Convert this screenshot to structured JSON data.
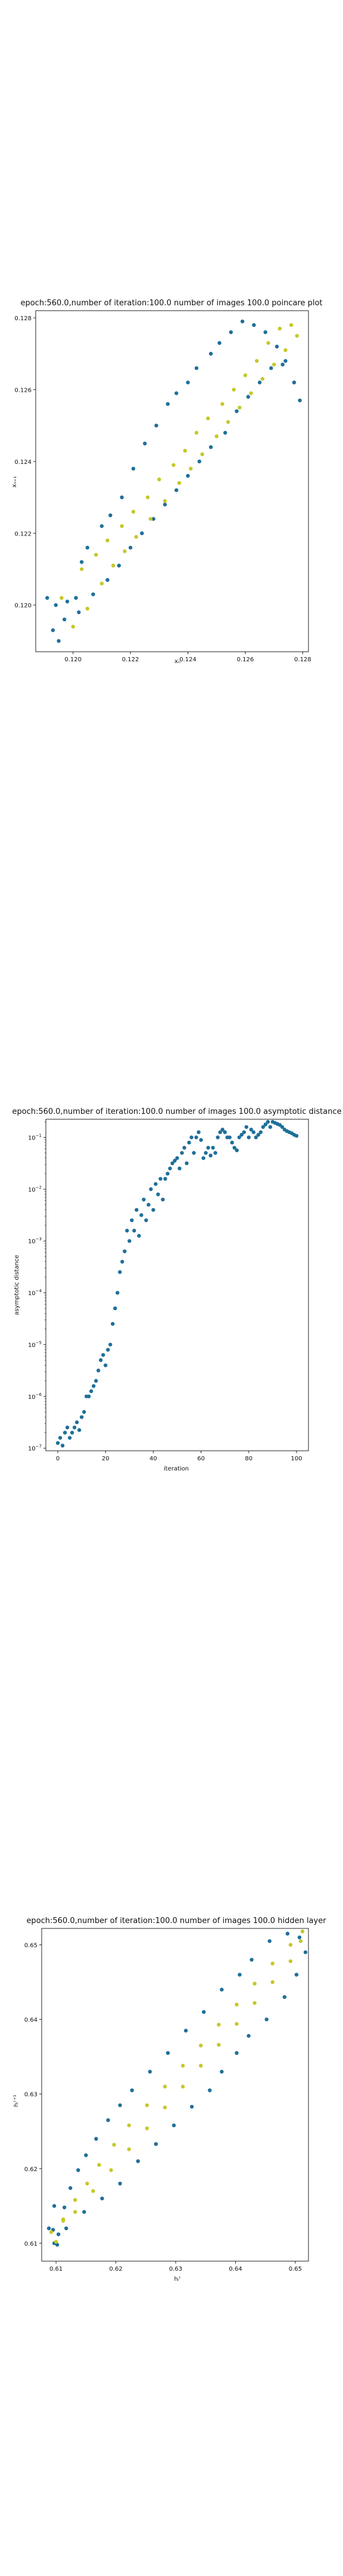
{
  "chart_data": [
    {
      "type": "scatter",
      "title": "epoch:560.0,number of iteration:100.0 number of images 100.0 poincare plot",
      "xlabel": "xₙ",
      "ylabel": "xₙ₊₁",
      "xlim": [
        0.1187,
        0.1282
      ],
      "ylim": [
        0.1187,
        0.1282
      ],
      "xticks": [
        0.12,
        0.122,
        0.124,
        0.126,
        0.128
      ],
      "yticks": [
        0.12,
        0.122,
        0.124,
        0.126,
        0.128
      ],
      "xticklabels": [
        "0.120",
        "0.122",
        "0.124",
        "0.126",
        "0.128"
      ],
      "yticklabels": [
        "0.120",
        "0.122",
        "0.124",
        "0.126",
        "0.128"
      ],
      "series": [
        {
          "color": "#1f6f9a",
          "x": [
            0.1191,
            0.1193,
            0.1195,
            0.1197,
            0.1201,
            0.1203,
            0.1205,
            0.121,
            0.1213,
            0.1217,
            0.1221,
            0.1225,
            0.1229,
            0.1233,
            0.1236,
            0.124,
            0.1243,
            0.1248,
            0.1251,
            0.1255,
            0.1259,
            0.1263,
            0.1267,
            0.1271,
            0.1274,
            0.1277,
            0.1279,
            0.1277,
            0.1273,
            0.1269,
            0.1265,
            0.1261,
            0.1257,
            0.1253,
            0.1248,
            0.1244,
            0.124,
            0.1236,
            0.1232,
            0.1228,
            0.1224,
            0.122,
            0.1216,
            0.1212,
            0.1207,
            0.1202,
            0.1198,
            0.1194
          ],
          "y": [
            0.1202,
            0.1193,
            0.119,
            0.1196,
            0.1202,
            0.1212,
            0.1216,
            0.1222,
            0.1225,
            0.123,
            0.1238,
            0.1245,
            0.125,
            0.1256,
            0.1259,
            0.1262,
            0.1266,
            0.127,
            0.1273,
            0.1276,
            0.1279,
            0.1278,
            0.1276,
            0.1272,
            0.1268,
            0.1262,
            0.1257,
            0.1262,
            0.1267,
            0.1266,
            0.1262,
            0.1258,
            0.1254,
            0.1248,
            0.1244,
            0.124,
            0.1236,
            0.1232,
            0.1228,
            0.1224,
            0.122,
            0.1216,
            0.1211,
            0.1207,
            0.1203,
            0.1198,
            0.1201,
            0.12
          ]
        },
        {
          "color": "#c5c82a",
          "x": [
            0.1196,
            0.12,
            0.1205,
            0.121,
            0.1214,
            0.1218,
            0.1222,
            0.1227,
            0.1232,
            0.1237,
            0.1241,
            0.1245,
            0.125,
            0.1254,
            0.1258,
            0.1262,
            0.1266,
            0.127,
            0.1274,
            0.1278,
            0.1276,
            0.1272,
            0.1268,
            0.1264,
            0.126,
            0.1256,
            0.1252,
            0.1247,
            0.1243,
            0.1239,
            0.1235,
            0.123,
            0.1226,
            0.1221,
            0.1217,
            0.1212,
            0.1208,
            0.1203
          ],
          "y": [
            0.1202,
            0.1194,
            0.1199,
            0.1206,
            0.1211,
            0.1215,
            0.1219,
            0.1224,
            0.1229,
            0.1234,
            0.1238,
            0.1242,
            0.1247,
            0.1251,
            0.1255,
            0.1259,
            0.1263,
            0.1267,
            0.1271,
            0.1275,
            0.1278,
            0.1277,
            0.1273,
            0.1268,
            0.1264,
            0.126,
            0.1256,
            0.1252,
            0.1248,
            0.1243,
            0.1239,
            0.1235,
            0.123,
            0.1226,
            0.1222,
            0.1218,
            0.1214,
            0.121
          ]
        }
      ]
    },
    {
      "type": "scatter",
      "title": "epoch:560.0,number of iteration:100.0  number of images 100.0 asymptotic distance",
      "xlabel": "iteration",
      "ylabel": "asymptotic distance",
      "xlim": [
        -5,
        105
      ],
      "ylog": true,
      "ylim_exp": [
        -7.05,
        -0.65
      ],
      "xticks": [
        0,
        20,
        40,
        60,
        80,
        100
      ],
      "xticklabels": [
        "0",
        "20",
        "40",
        "60",
        "80",
        "100"
      ],
      "yticks_exp": [
        -7,
        -6,
        -5,
        -4,
        -3,
        -2,
        -1
      ],
      "ytick_base": "10",
      "ytick_exps": [
        "−7",
        "−6",
        "−5",
        "−4",
        "−3",
        "−2",
        "−1"
      ],
      "series": [
        {
          "color": "#1f6f9a",
          "x": [
            0,
            1,
            2,
            3,
            4,
            5,
            6,
            7,
            8,
            9,
            10,
            11,
            12,
            13,
            14,
            15,
            16,
            17,
            18,
            19,
            20,
            21,
            22,
            23,
            24,
            25,
            26,
            27,
            28,
            29,
            30,
            31,
            32,
            33,
            34,
            35,
            36,
            37,
            38,
            39,
            40,
            41,
            42,
            43,
            44,
            45,
            46,
            47,
            48,
            49,
            50,
            51,
            52,
            53,
            54,
            55,
            56,
            57,
            58,
            59,
            60,
            61,
            62,
            63,
            64,
            65,
            66,
            67,
            68,
            69,
            70,
            71,
            72,
            73,
            74,
            75,
            76,
            77,
            78,
            79,
            80,
            81,
            82,
            83,
            84,
            85,
            86,
            87,
            88,
            89,
            90,
            91,
            92,
            93,
            94,
            95,
            96,
            97,
            98,
            99,
            100
          ],
          "y_exp": [
            -6.9,
            -6.8,
            -6.95,
            -6.7,
            -6.6,
            -6.8,
            -6.7,
            -6.6,
            -6.5,
            -6.65,
            -6.4,
            -6.3,
            -6.0,
            -6.0,
            -5.9,
            -5.8,
            -5.7,
            -5.5,
            -5.3,
            -5.2,
            -5.4,
            -5.1,
            -5.0,
            -4.6,
            -4.3,
            -4.0,
            -3.6,
            -3.4,
            -3.2,
            -2.8,
            -3.0,
            -2.6,
            -2.8,
            -2.4,
            -2.9,
            -2.5,
            -2.2,
            -2.6,
            -2.3,
            -2.0,
            -2.4,
            -1.9,
            -2.1,
            -1.8,
            -2.2,
            -1.8,
            -1.7,
            -1.6,
            -1.5,
            -1.45,
            -1.4,
            -1.6,
            -1.3,
            -1.2,
            -1.5,
            -1.1,
            -1.0,
            -1.3,
            -1.0,
            -0.9,
            -1.05,
            -1.4,
            -1.3,
            -1.2,
            -1.35,
            -1.2,
            -1.3,
            -1.0,
            -0.9,
            -0.85,
            -0.9,
            -1.0,
            -1.0,
            -1.1,
            -1.2,
            -1.25,
            -1.0,
            -0.95,
            -0.9,
            -0.8,
            -1.0,
            -0.85,
            -0.9,
            -1.0,
            -0.95,
            -0.9,
            -0.8,
            -0.75,
            -0.7,
            -0.8,
            -0.7,
            -0.72,
            -0.74,
            -0.76,
            -0.8,
            -0.85,
            -0.88,
            -0.9,
            -0.92,
            -0.95,
            -0.97
          ]
        }
      ]
    },
    {
      "type": "scatter",
      "title": "epoch:560.0,number of iteration:100.0  number of images 100.0 hidden layer",
      "xlabel": "hᵢᵗ",
      "ylabel": "hᵢᵗ⁺¹",
      "xlim": [
        0.6076,
        0.6522
      ],
      "ylim": [
        0.6076,
        0.6522
      ],
      "xticks": [
        0.61,
        0.62,
        0.63,
        0.64,
        0.65
      ],
      "yticks": [
        0.61,
        0.62,
        0.63,
        0.64,
        0.65
      ],
      "xticklabels": [
        "0.61",
        "0.62",
        "0.63",
        "0.64",
        "0.65"
      ],
      "yticklabels": [
        "0.61",
        "0.62",
        "0.63",
        "0.64",
        "0.65"
      ],
      "series": [
        {
          "color": "#1f6f9a",
          "x": [
            0.6088,
            0.6095,
            0.6097,
            0.6104,
            0.6114,
            0.6124,
            0.6137,
            0.615,
            0.6167,
            0.6187,
            0.6207,
            0.6227,
            0.6257,
            0.6287,
            0.6317,
            0.6347,
            0.6377,
            0.6407,
            0.6427,
            0.6457,
            0.6487,
            0.6507,
            0.6517,
            0.6502,
            0.6482,
            0.6452,
            0.6422,
            0.6402,
            0.6377,
            0.6357,
            0.6327,
            0.6297,
            0.6267,
            0.6237,
            0.6207,
            0.6177,
            0.6147,
            0.6117,
            0.6102,
            0.6097
          ],
          "y": [
            0.612,
            0.6118,
            0.615,
            0.6112,
            0.6148,
            0.6174,
            0.6198,
            0.6218,
            0.624,
            0.6265,
            0.6285,
            0.6305,
            0.633,
            0.6355,
            0.6385,
            0.641,
            0.644,
            0.646,
            0.648,
            0.6505,
            0.6515,
            0.651,
            0.649,
            0.646,
            0.643,
            0.64,
            0.6378,
            0.6355,
            0.633,
            0.6305,
            0.6283,
            0.6258,
            0.6233,
            0.621,
            0.618,
            0.616,
            0.6142,
            0.612,
            0.6098,
            0.61
          ]
        },
        {
          "color": "#c5c82a",
          "x": [
            0.6092,
            0.61,
            0.6112,
            0.6132,
            0.6152,
            0.6172,
            0.6197,
            0.6222,
            0.6252,
            0.6282,
            0.6312,
            0.6342,
            0.6372,
            0.6402,
            0.6432,
            0.6462,
            0.6492,
            0.6512,
            0.6509,
            0.6492,
            0.6462,
            0.6432,
            0.6402,
            0.6372,
            0.6342,
            0.6312,
            0.6282,
            0.6252,
            0.6222,
            0.6192,
            0.6162,
            0.6132,
            0.6112
          ],
          "y": [
            0.6115,
            0.6102,
            0.613,
            0.6158,
            0.618,
            0.6205,
            0.6232,
            0.6258,
            0.6285,
            0.631,
            0.6338,
            0.6365,
            0.6393,
            0.642,
            0.6448,
            0.6475,
            0.65,
            0.6518,
            0.6505,
            0.6478,
            0.645,
            0.6422,
            0.6394,
            0.6366,
            0.6338,
            0.631,
            0.6282,
            0.6254,
            0.6226,
            0.6198,
            0.617,
            0.6142,
            0.6132
          ]
        }
      ]
    }
  ]
}
